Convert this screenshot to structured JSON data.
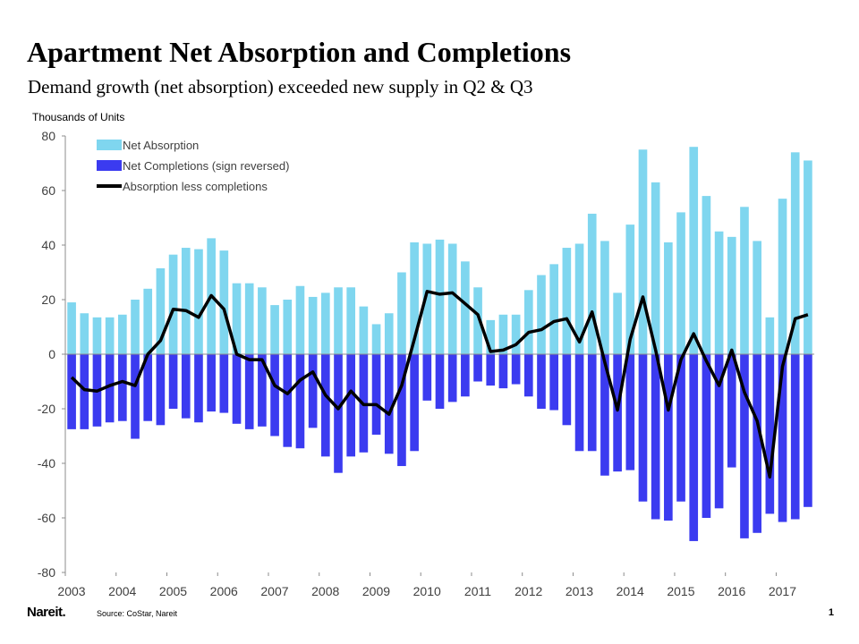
{
  "slide": {
    "title": "Apartment Net Absorption and Completions",
    "subtitle": "Demand growth (net absorption) exceeded new supply in Q2 & Q3",
    "source": "Source: CoStar, Nareit",
    "logo_text": "Nareit.",
    "page_number": "1"
  },
  "chart_data": {
    "type": "bar",
    "ylabel": "Thousands  of Units",
    "ylim": [
      -80,
      80
    ],
    "yticks": [
      -80,
      -60,
      -40,
      -20,
      0,
      20,
      40,
      60,
      80
    ],
    "year_labels": [
      "2003",
      "2004",
      "2005",
      "2006",
      "2007",
      "2008",
      "2009",
      "2010",
      "2011",
      "2012",
      "2013",
      "2014",
      "2015",
      "2016",
      "2017"
    ],
    "legend_position": "top-left",
    "grid": false,
    "colors": {
      "absorption": "#7fd6ef",
      "completions": "#3b3bf0",
      "line": "#000000"
    },
    "series": [
      {
        "name": "Net Absorption",
        "type": "bar",
        "values": [
          19,
          15,
          13.5,
          13.5,
          14.5,
          20,
          24,
          31.5,
          36.5,
          39,
          38.5,
          42.5,
          38,
          26,
          26,
          24.5,
          18,
          20,
          25,
          21,
          22.5,
          24.5,
          24.5,
          17.5,
          11,
          15,
          30,
          41,
          40.5,
          42,
          40.5,
          34,
          24.5,
          12.5,
          14.5,
          14.5,
          23.5,
          29,
          33,
          39,
          40.5,
          51.5,
          41.5,
          22.5,
          47.5,
          75,
          63,
          41,
          52,
          76,
          58,
          45,
          43,
          54,
          41.5,
          13.5,
          57,
          74,
          71
        ]
      },
      {
        "name": "Net Completions (sign reversed)",
        "type": "bar",
        "values": [
          -27.5,
          -27.5,
          -26.5,
          -25,
          -24.5,
          -31,
          -24.5,
          -26,
          -20,
          -23.5,
          -25,
          -21,
          -21.5,
          -25.5,
          -27.5,
          -26.5,
          -30,
          -34,
          -34.5,
          -27,
          -37.5,
          -43.5,
          -37.5,
          -36,
          -29.5,
          -36.5,
          -41,
          -35.5,
          -17,
          -20,
          -17.5,
          -15.5,
          -10,
          -11.5,
          -12.5,
          -11,
          -15.5,
          -20,
          -20.5,
          -26,
          -35.5,
          -35.5,
          -44.5,
          -43,
          -42.5,
          -54,
          -60.5,
          -61,
          -54,
          -68.5,
          -60,
          -56.5,
          -41.5,
          -67.5,
          -65.5,
          -58.5,
          -61.5,
          -60.5,
          -56
        ]
      },
      {
        "name": "Absorption less completions",
        "type": "line",
        "values": [
          -8.5,
          -13,
          -13.5,
          -11.5,
          -10,
          -11.5,
          0,
          5,
          16.5,
          16,
          13.5,
          21.5,
          16.5,
          0,
          -2,
          -2,
          -11.5,
          -14.5,
          -9.5,
          -6.5,
          -15,
          -20,
          -13.5,
          -18.5,
          -18.5,
          -22,
          -11.5,
          5.5,
          23,
          22,
          22.5,
          18.5,
          14.5,
          1,
          1.5,
          3.5,
          8,
          9,
          12,
          13,
          4.5,
          15.5,
          -3,
          -20.5,
          5.5,
          21,
          1.5,
          -20.5,
          -2,
          7.5,
          -2.5,
          -11.5,
          1.5,
          -14,
          -24.5,
          -45,
          -4.5,
          13,
          14.5
        ]
      }
    ]
  }
}
